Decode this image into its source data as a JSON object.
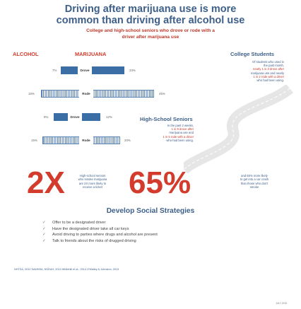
{
  "title_line1": "Driving after marijuana use is more",
  "title_line2": "common than driving after alcohol use",
  "subtitle_line1": "College and high-school seniors who drove or rode with a",
  "subtitle_line2": "driver after marijuana use",
  "headers": {
    "alcohol": "ALCOHOL",
    "marijuana": "MARIJUANA",
    "college": "College Students"
  },
  "college": {
    "drove": {
      "label": "Drove",
      "alcohol_pct": "7%",
      "marijuana_pct": "33%",
      "alcohol": 7,
      "marijuana": 33
    },
    "rode": {
      "label": "Rode",
      "alcohol_pct": "16%",
      "marijuana_pct": "45%",
      "alcohol": 16,
      "marijuana": 45
    },
    "note_lines": [
      "Of students who used in",
      "the past month,",
      "nearly 1 in 3 drove after",
      "marijuana use and nearly",
      "1 in 2 rode with a driver",
      "who had been using."
    ]
  },
  "highschool": {
    "header": "High-School Seniors",
    "drove": {
      "label": "Drove",
      "alcohol_pct": "9%",
      "marijuana_pct": "12%",
      "alcohol": 9,
      "marijuana": 12
    },
    "rode": {
      "label": "Rode",
      "alcohol_pct": "15%",
      "marijuana_pct": "20%",
      "alcohol": 15,
      "marijuana": 20
    },
    "note_lines": [
      "In the past 2 weeks,",
      "1 in 8 drove after",
      "marijuana use and",
      "1 in 5 rode with a driver",
      "who had been using."
    ]
  },
  "stats": {
    "stat1_value": "2X",
    "stat1_note": [
      "High-school seniors",
      "who smoke marijuana",
      "are 2X more likely to",
      "receive a ticket"
    ],
    "stat2_value": "65%",
    "stat2_note": [
      "and 65% more likely",
      "to get into a car crash",
      "than those who don't",
      "smoke"
    ]
  },
  "strategies": {
    "title": "Develop Social Strategies",
    "items": [
      "Offer to be a designated driver",
      "Have the designated driver take all car keys",
      "Avoid driving to parties where drugs and alcohol are present",
      "Talk to friends about the risks of drugged driving"
    ]
  },
  "references": "NHTSA, 2010   SAMHSA, NSDUH, 2014   Whitehill et al., 2014   O'Malley & Johnston, 2013",
  "corner": "JULY 2015",
  "colors": {
    "accent": "#d33b2c",
    "navy": "#3d5f8a",
    "bar": "#3b6ea5"
  }
}
